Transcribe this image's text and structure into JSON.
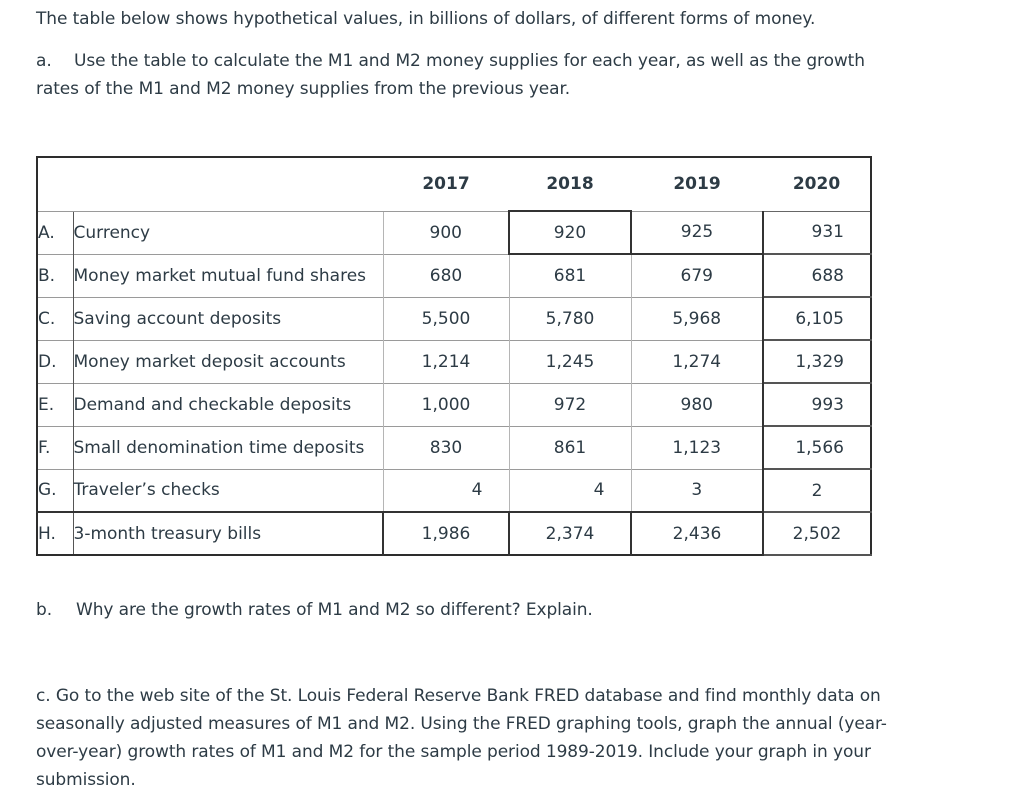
{
  "intro": "The table below shows hypothetical values, in billions of dollars, of different forms of money.",
  "question_a": {
    "label": "a.",
    "text": "Use the table to calculate the M1 and M2 money supplies for each year, as well as the growth rates of the M1 and M2 money supplies from the previous year."
  },
  "table": {
    "years": [
      "2017",
      "2018",
      "2019",
      "2020"
    ],
    "rows": [
      {
        "letter": "A.",
        "name": "Currency",
        "values": [
          "900",
          "920",
          "925",
          "931"
        ]
      },
      {
        "letter": "B.",
        "name": "Money market mutual fund shares",
        "values": [
          "680",
          "681",
          "679",
          "688"
        ]
      },
      {
        "letter": "C.",
        "name": "Saving account deposits",
        "values": [
          "5,500",
          "5,780",
          "5,968",
          "6,105"
        ]
      },
      {
        "letter": "D.",
        "name": "Money market deposit accounts",
        "values": [
          "1,214",
          "1,245",
          "1,274",
          "1,329"
        ]
      },
      {
        "letter": "E.",
        "name": "Demand and checkable deposits",
        "values": [
          "1,000",
          "972",
          "980",
          "993"
        ]
      },
      {
        "letter": "F.",
        "name": "Small denomination time deposits",
        "values": [
          "830",
          "861",
          "1,123",
          "1,566"
        ]
      },
      {
        "letter": "G.",
        "name": "Traveler’s checks",
        "values": [
          "4",
          "4",
          "3",
          "2"
        ]
      },
      {
        "letter": "H.",
        "name": "3-month treasury bills",
        "values": [
          "1,986",
          "2,374",
          "2,436",
          "2,502"
        ]
      }
    ]
  },
  "question_b": {
    "label": "b.",
    "text": "Why are the growth rates of M1 and M2 so different? Explain."
  },
  "question_c": {
    "text": "c. Go to the web site of the St. Louis Federal Reserve Bank FRED database and find monthly data on seasonally adjusted measures of M1 and M2. Using the FRED graphing tools, graph the annual (year-over-year) growth rates of M1 and M2 for the sample period 1989-2019. Include your graph in your submission."
  }
}
